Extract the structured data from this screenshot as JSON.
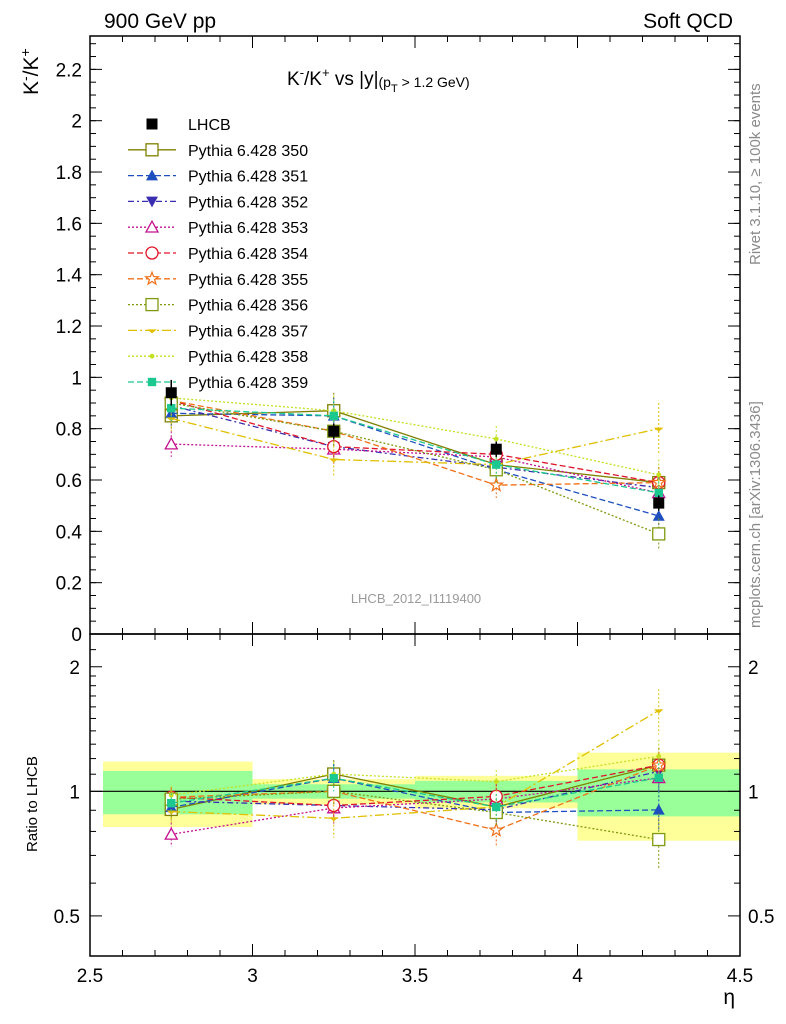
{
  "header": {
    "left": "900 GeV pp",
    "right": "Soft QCD"
  },
  "side_labels": {
    "rivet": "Rivet 3.1.10, ≥ 100k events",
    "mcplots": "mcplots.cern.ch [arXiv:1306.3436]"
  },
  "watermark": "LHCB_2012_I1119400",
  "chart_data": {
    "type": "line",
    "title": "K⁻/K⁺ vs |y|",
    "title_main": "K",
    "title_sup1": "-",
    "title_mid": "/K",
    "title_sup2": "+",
    "title_rest": " vs |y|",
    "title_paren": "(p",
    "title_sub": "T",
    "title_cut": " > 1.2 GeV)",
    "ylabel": "K⁻/K⁺",
    "ylabel_main": "K",
    "ylabel_sup1": "-",
    "ylabel_mid": "/K",
    "ylabel_sup2": "+",
    "xlabel": "η",
    "ratio_ylabel": "Ratio to LHCB",
    "xlim": [
      2.5,
      4.5
    ],
    "ylim": [
      0,
      2.33
    ],
    "ratio_ylim": [
      0.4,
      2.4
    ],
    "ratio_log": true,
    "x_ticks": [
      "2.5",
      "3",
      "3.5",
      "4",
      "4.5"
    ],
    "y_ticks": [
      "0",
      "0.2",
      "0.4",
      "0.6",
      "0.8",
      "1",
      "1.2",
      "1.4",
      "1.6",
      "1.8",
      "2",
      "2.2"
    ],
    "ratio_ticks": [
      "0.5",
      "1",
      "2"
    ],
    "x": [
      2.75,
      3.25,
      3.75,
      4.25
    ],
    "bin_edges": [
      2.5,
      3.0,
      3.5,
      4.0,
      4.5
    ],
    "data": {
      "name": "LHCB",
      "values": [
        0.94,
        0.79,
        0.72,
        0.51
      ],
      "errors": [
        0.05,
        0.03,
        0.03,
        0.03
      ]
    },
    "band_inner": [
      0.12,
      0.04,
      0.06,
      0.13
    ],
    "band_outer": [
      0.18,
      0.07,
      0.09,
      0.24
    ],
    "series": [
      {
        "name": "Pythia 6.428 350",
        "color": "#808000",
        "dash": "",
        "marker": "square-open",
        "values": [
          0.85,
          0.87,
          0.66,
          0.59
        ],
        "errors": [
          0.05,
          0.07,
          0.06,
          0.06
        ]
      },
      {
        "name": "Pythia 6.428 351",
        "color": "#1f4fbf",
        "dash": "6,3",
        "marker": "triangle-up",
        "values": [
          0.86,
          0.85,
          0.64,
          0.46
        ],
        "errors": [
          0.05,
          0.07,
          0.05,
          0.05
        ]
      },
      {
        "name": "Pythia 6.428 352",
        "color": "#3a2eb0",
        "dash": "6,3,2,3",
        "marker": "triangle-down",
        "values": [
          0.89,
          0.73,
          0.65,
          0.57
        ],
        "errors": [
          0.05,
          0.06,
          0.05,
          0.06
        ]
      },
      {
        "name": "Pythia 6.428 353",
        "color": "#c4108f",
        "dash": "2,2",
        "marker": "triangle-open",
        "values": [
          0.74,
          0.72,
          0.69,
          0.55
        ],
        "errors": [
          0.05,
          0.06,
          0.05,
          0.06
        ]
      },
      {
        "name": "Pythia 6.428 354",
        "color": "#e0142a",
        "dash": "6,3",
        "marker": "circle-open",
        "values": [
          0.91,
          0.73,
          0.7,
          0.59
        ],
        "errors": [
          0.05,
          0.06,
          0.05,
          0.06
        ]
      },
      {
        "name": "Pythia 6.428 355",
        "color": "#f07018",
        "dash": "6,3",
        "marker": "star-open",
        "values": [
          0.91,
          0.79,
          0.58,
          0.59
        ],
        "errors": [
          0.05,
          0.06,
          0.05,
          0.06
        ]
      },
      {
        "name": "Pythia 6.428 356",
        "color": "#7f9a10",
        "dash": "2,2",
        "marker": "square-open",
        "values": [
          0.9,
          0.79,
          0.64,
          0.39
        ],
        "errors": [
          0.05,
          0.06,
          0.05,
          0.06
        ]
      },
      {
        "name": "Pythia 6.428 357",
        "color": "#e0c000",
        "dash": "9,3,2,3",
        "marker": "tri-small",
        "values": [
          0.84,
          0.68,
          0.66,
          0.8
        ],
        "errors": [
          0.05,
          0.07,
          0.05,
          0.1
        ]
      },
      {
        "name": "Pythia 6.428 358",
        "color": "#c4e020",
        "dash": "2,2",
        "marker": "dot",
        "values": [
          0.92,
          0.87,
          0.76,
          0.62
        ],
        "errors": [
          0.05,
          0.06,
          0.05,
          0.06
        ]
      },
      {
        "name": "Pythia 6.428 359",
        "color": "#1ac890",
        "dash": "6,3",
        "marker": "square-small",
        "values": [
          0.88,
          0.85,
          0.66,
          0.55
        ],
        "errors": [
          0.05,
          0.06,
          0.05,
          0.06
        ]
      }
    ]
  }
}
